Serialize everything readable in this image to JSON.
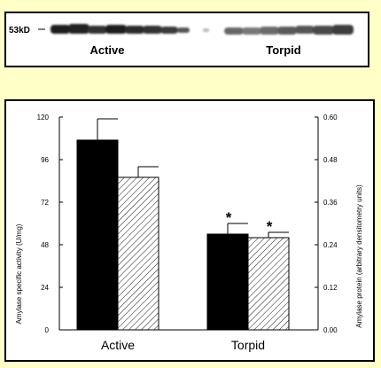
{
  "blot": {
    "marker_label": "53kD",
    "group_labels": [
      "Active",
      "Torpid"
    ]
  },
  "colors": {
    "background": "#ffffc8",
    "panel": "#ffffff",
    "specific_activity_bar": "#000000",
    "protein_bar_hatch": "#000000"
  },
  "chart_data": {
    "type": "bar",
    "categories": [
      "Active",
      "Torpid"
    ],
    "ylabel": "Amylase specific activity (U/mg)",
    "ylim": [
      0,
      120
    ],
    "yticks": [
      "0",
      "24",
      "48",
      "72",
      "96",
      "120"
    ],
    "y2label": "Amylase protein (arbitrary densitometry units)",
    "y2lim": [
      0,
      0.6
    ],
    "y2ticks": [
      "0.00",
      "0.12",
      "0.24",
      "0.36",
      "0.48",
      "0.60"
    ],
    "series": [
      {
        "style": "solid-black",
        "axis": "left",
        "values": [
          107,
          54
        ],
        "errors": [
          12,
          6
        ],
        "significance": [
          "",
          "*"
        ]
      },
      {
        "style": "hatched",
        "axis": "right",
        "values": [
          0.43,
          0.26
        ],
        "errors": [
          0.03,
          0.015
        ],
        "significance": [
          "",
          "*"
        ]
      }
    ],
    "grid": false
  }
}
